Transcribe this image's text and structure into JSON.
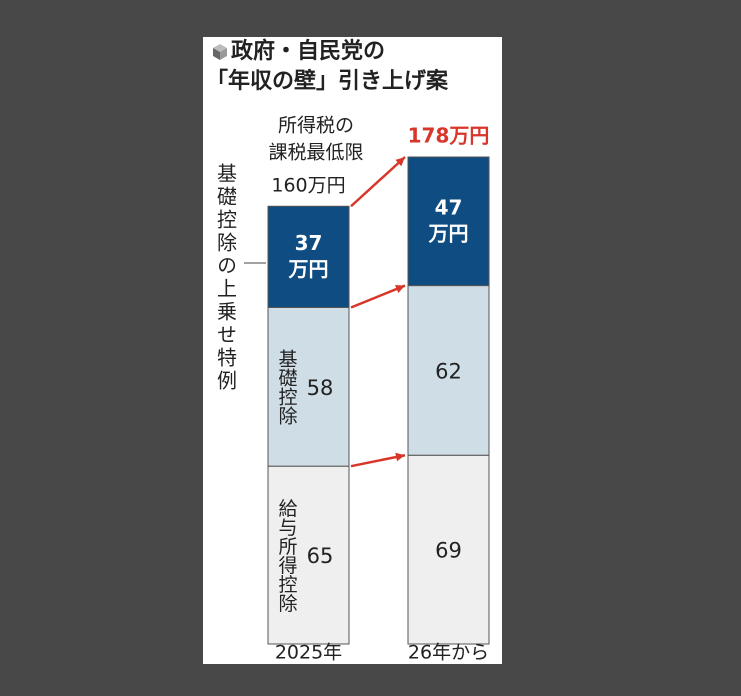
{
  "chart_data": {
    "type": "stacked-bar",
    "title": [
      "政府・自民党の",
      "「年収の壁」引き上げ案"
    ],
    "annotation": [
      "所得税の",
      "課税最低限"
    ],
    "categories": [
      "2025年",
      "26年から"
    ],
    "totals": [
      160,
      178
    ],
    "total_labels": [
      "160万円",
      "178万円"
    ],
    "series": [
      {
        "name": "給与所得控除",
        "color": "#efefef",
        "values": [
          65,
          69
        ]
      },
      {
        "name": "基礎控除",
        "color": "#cfdde6",
        "values": [
          58,
          62
        ]
      },
      {
        "name": "基礎控除の上乗せ特例",
        "color": "#0f4c81",
        "values": [
          37,
          47
        ],
        "value_labels": [
          "37万円",
          "47万円"
        ]
      }
    ]
  }
}
